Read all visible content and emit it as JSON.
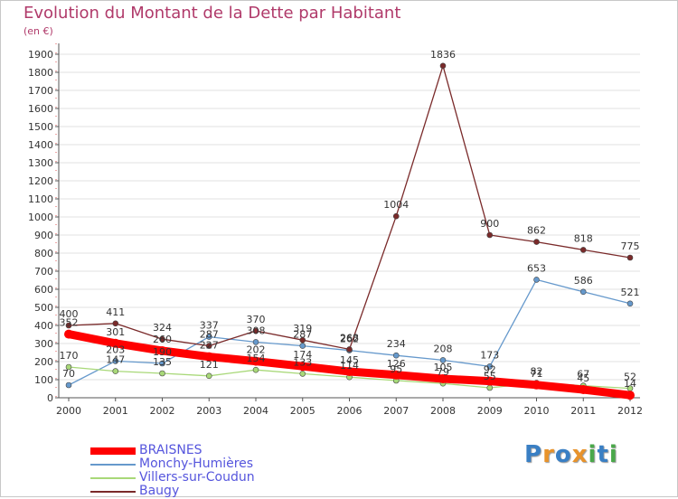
{
  "title": "Evolution du Montant de la Dette par Habitant",
  "unit": "(en €)",
  "logo": {
    "letters": [
      "P",
      "r",
      "o",
      "x",
      "i",
      "t",
      "i"
    ],
    "colors": [
      "#3a7fc4",
      "#e8932b",
      "#3a7fc4",
      "#e8932b",
      "#4aa84a",
      "#3a7fc4",
      "#4aa84a"
    ]
  },
  "chart_data": {
    "type": "line",
    "title": "Evolution du Montant de la Dette par Habitant",
    "ylabel": "(en €)",
    "xlabel": "",
    "ylim": [
      0,
      1900
    ],
    "yticks": [
      0,
      100,
      200,
      300,
      400,
      500,
      600,
      700,
      800,
      900,
      1000,
      1100,
      1200,
      1300,
      1400,
      1500,
      1600,
      1700,
      1800,
      1900
    ],
    "x": [
      "2000",
      "2001",
      "2002",
      "2003",
      "2004",
      "2005",
      "2006",
      "2007",
      "2008",
      "2009",
      "2010",
      "2011",
      "2012"
    ],
    "grid": "horizontal",
    "legend": "bottom-left",
    "series": [
      {
        "name": "BRAISNES",
        "color": "#ff0000",
        "width": 9,
        "marker": 5,
        "values": [
          352,
          301,
          260,
          227,
          202,
          174,
          145,
          126,
          105,
          92,
          71,
          45,
          14
        ]
      },
      {
        "name": "Monchy-Humières",
        "color": "#6699cc",
        "width": 1.3,
        "marker": 3,
        "values": [
          70,
          203,
          190,
          337,
          308,
          287,
          262,
          234,
          208,
          173,
          653,
          586,
          521
        ]
      },
      {
        "name": "Villers-sur-Coudun",
        "color": "#a8d878",
        "width": 1.3,
        "marker": 3,
        "values": [
          170,
          147,
          135,
          121,
          154,
          133,
          114,
          95,
          79,
          55,
          82,
          67,
          52
        ]
      },
      {
        "name": "Baugy",
        "color": "#7a2a2a",
        "width": 1.3,
        "marker": 3,
        "values": [
          400,
          411,
          324,
          287,
          370,
          319,
          268,
          1004,
          1836,
          900,
          862,
          818,
          775
        ]
      }
    ]
  }
}
